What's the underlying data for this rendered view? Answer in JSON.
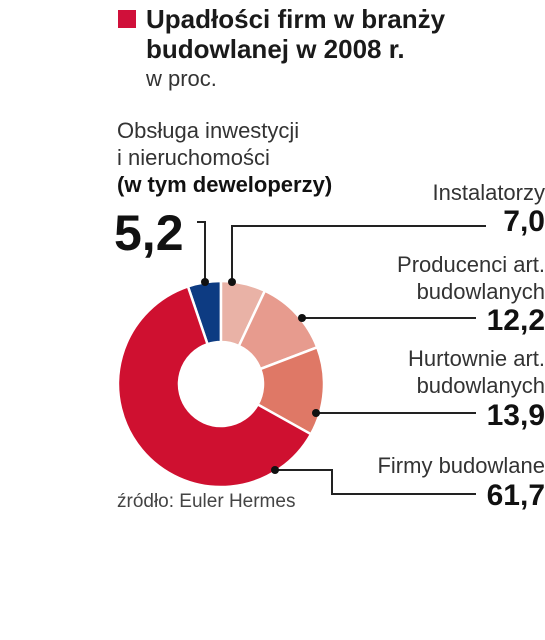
{
  "colors": {
    "title_marker": "#d0103a",
    "slices": [
      "#0d3b82",
      "#e9b2a6",
      "#e79b8e",
      "#df7866",
      "#cf1030"
    ]
  },
  "chart_data": {
    "type": "pie",
    "variant": "donut",
    "title": "Upadłości firm w branży budowlanej w 2008 r.",
    "title_lines": [
      "Upadłości firm w branży",
      "budowlanej w 2008 r."
    ],
    "unit": "w proc.",
    "source": "źródło: Euler Hermes",
    "slices": [
      {
        "label_lines": [
          "Obsługa inwestycji",
          "i nieruchomości",
          "(w tym deweloperzy)"
        ],
        "value": 5.2,
        "display": "5,2"
      },
      {
        "label_lines": [
          "Instalatorzy"
        ],
        "value": 7.0,
        "display": "7,0"
      },
      {
        "label_lines": [
          "Producenci art.",
          "budowlanych"
        ],
        "value": 12.2,
        "display": "12,2"
      },
      {
        "label_lines": [
          "Hurtownie art.",
          "budowlanych"
        ],
        "value": 13.9,
        "display": "13,9"
      },
      {
        "label_lines": [
          "Firmy budowlane"
        ],
        "value": 61.7,
        "display": "61,7"
      }
    ]
  }
}
